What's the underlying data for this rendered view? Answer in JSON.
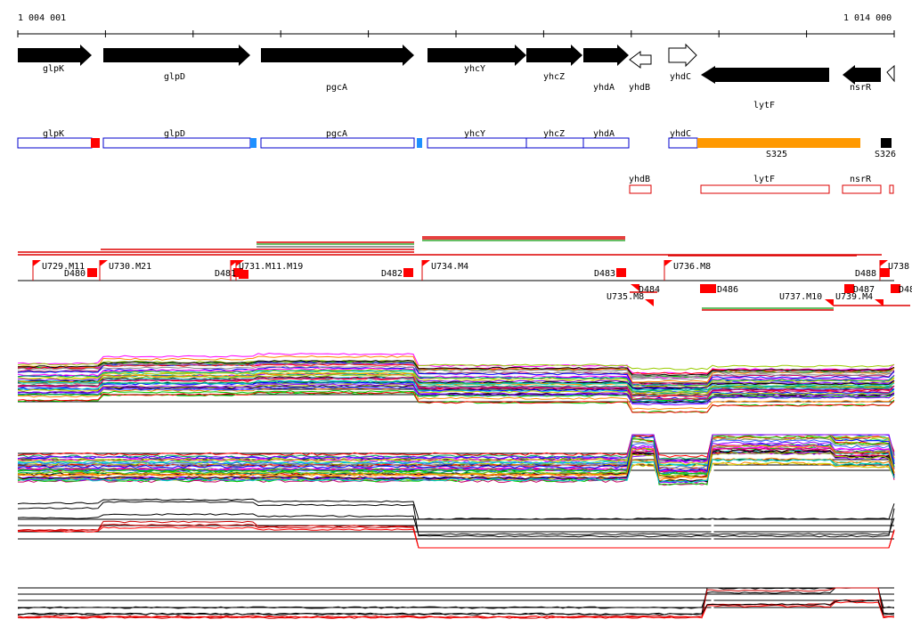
{
  "ruler": {
    "start_label": "1 004 001",
    "end_label": "1 014 000"
  },
  "colors": {
    "gene_arrow": "#000000",
    "annotation_box": "#0000cc",
    "marker_red": "#ff0000",
    "marker_blue": "#1e90ff",
    "segment_orange": "#ff9900",
    "feature_box_red": "#dd0000"
  },
  "genes": [
    {
      "name": "glpK"
    },
    {
      "name": "glpD"
    },
    {
      "name": "pgcA"
    },
    {
      "name": "yhcY"
    },
    {
      "name": "yhcZ"
    },
    {
      "name": "yhdA"
    },
    {
      "name": "yhdB"
    },
    {
      "name": "yhdC"
    },
    {
      "name": "lytF"
    },
    {
      "name": "nsrR"
    }
  ],
  "annotations": [
    {
      "label": "glpK"
    },
    {
      "label": "glpD"
    },
    {
      "label": "pgcA"
    },
    {
      "label": "yhcY"
    },
    {
      "label": "yhcZ"
    },
    {
      "label": "yhdA"
    },
    {
      "label": "yhdC"
    },
    {
      "label": "S325"
    },
    {
      "label": "S326"
    }
  ],
  "reverse_features": [
    {
      "label": "yhdB"
    },
    {
      "label": "lytF"
    },
    {
      "label": "nsrR"
    }
  ],
  "segments": [
    {
      "label": "U729.M11"
    },
    {
      "label": "D480"
    },
    {
      "label": "U730.M21"
    },
    {
      "label": "D481"
    },
    {
      "label": "U731.M11.M19"
    },
    {
      "label": "D482"
    },
    {
      "label": "U734.M4"
    },
    {
      "label": "D483"
    },
    {
      "label": "U736.M8"
    },
    {
      "label": "D488"
    },
    {
      "label": "U738"
    },
    {
      "label": "U735.M8"
    },
    {
      "label": "D484"
    },
    {
      "label": "D486"
    },
    {
      "label": "U737.M10"
    },
    {
      "label": "D487"
    },
    {
      "label": "U739.M4"
    },
    {
      "label": "D48"
    }
  ]
}
